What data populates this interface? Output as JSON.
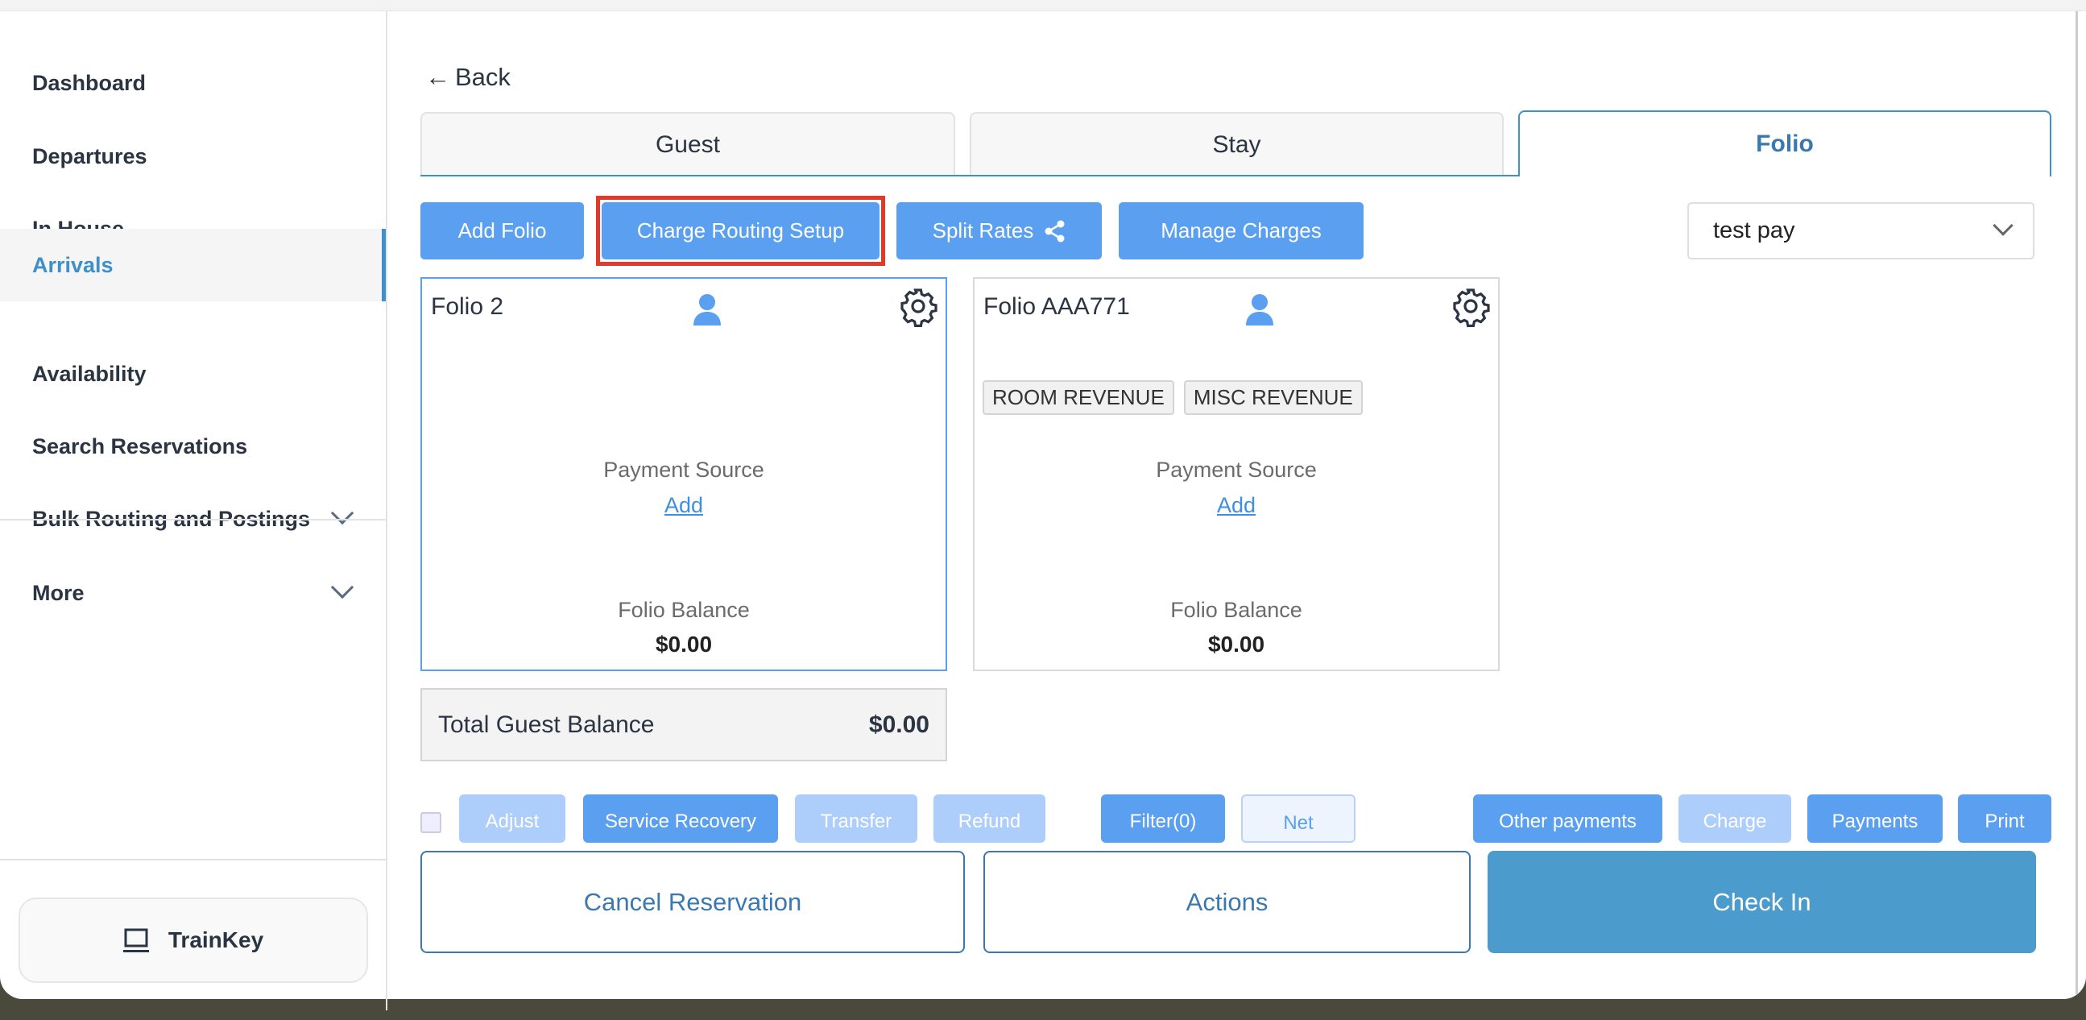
{
  "sidebar": {
    "items": [
      {
        "label": "Dashboard"
      },
      {
        "label": "Departures"
      },
      {
        "label": "In House"
      },
      {
        "label": "Arrivals",
        "active": true
      },
      {
        "label": "Availability"
      },
      {
        "label": "Search Reservations"
      },
      {
        "label": "Bulk Routing and Postings",
        "expandable": true
      },
      {
        "label": "More",
        "expandable": true
      }
    ],
    "trainkey": "TrainKey"
  },
  "main": {
    "back": "Back",
    "tabs": [
      {
        "label": "Guest"
      },
      {
        "label": "Stay"
      },
      {
        "label": "Folio",
        "active": true
      }
    ],
    "toolbar": {
      "add_folio": "Add Folio",
      "charge_routing": "Charge Routing Setup",
      "split_rates": "Split Rates",
      "manage_charges": "Manage Charges",
      "select_value": "test pay"
    },
    "highlight_color": "#e03a2a",
    "folios": [
      {
        "title": "Folio 2",
        "tags": [],
        "payment_label": "Payment Source",
        "payment_add": "Add",
        "balance_label": "Folio Balance",
        "balance": "$0.00"
      },
      {
        "title": "Folio AAA771",
        "tags": [
          "ROOM REVENUE",
          "MISC REVENUE"
        ],
        "payment_label": "Payment Source",
        "payment_add": "Add",
        "balance_label": "Folio Balance",
        "balance": "$0.00"
      }
    ],
    "total": {
      "label": "Total Guest Balance",
      "value": "$0.00"
    },
    "action_row": [
      "Adjust",
      "Service Recovery",
      "Transfer",
      "Refund",
      "Filter(0)",
      "Net",
      "Other payments",
      "Charge",
      "Payments",
      "Print"
    ],
    "footer": {
      "cancel": "Cancel Reservation",
      "actions": "Actions",
      "checkin": "Check In"
    }
  }
}
